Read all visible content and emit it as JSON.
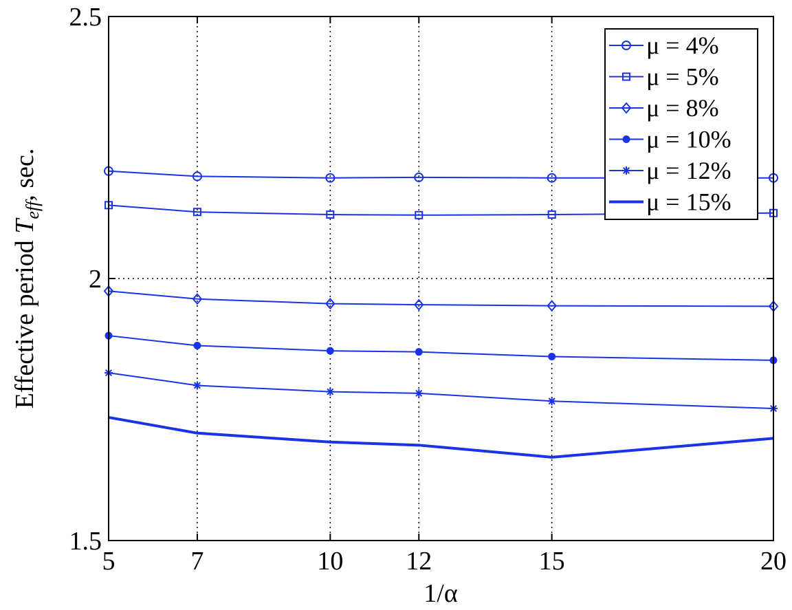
{
  "chart_data": {
    "type": "line",
    "title": "",
    "xlabel": "1/α",
    "ylabel": "Effective period T_eff, sec.",
    "ylabel_main": "Effective period ",
    "ylabel_var": "T",
    "ylabel_sub": "eff",
    "ylabel_tail": ", sec.",
    "x": [
      5,
      7,
      10,
      12,
      15,
      20
    ],
    "xlim": [
      5,
      20
    ],
    "ylim": [
      1.5,
      2.5
    ],
    "xticks": [
      "5",
      "7",
      "10",
      "12",
      "15",
      "20"
    ],
    "yticks": [
      "1.5",
      "2",
      "2.5"
    ],
    "grid": "dotted",
    "legend_position": "top-right",
    "color": "#1a33e6",
    "series": [
      {
        "name": "μ = 4%",
        "marker": "circle",
        "values": [
          2.205,
          2.195,
          2.192,
          2.193,
          2.192,
          2.192
        ]
      },
      {
        "name": "μ = 5%",
        "marker": "square",
        "values": [
          2.14,
          2.127,
          2.122,
          2.121,
          2.122,
          2.125
        ]
      },
      {
        "name": "μ = 8%",
        "marker": "diamond",
        "values": [
          1.976,
          1.961,
          1.952,
          1.95,
          1.948,
          1.947
        ]
      },
      {
        "name": "μ = 10%",
        "marker": "dot",
        "values": [
          1.891,
          1.872,
          1.862,
          1.86,
          1.851,
          1.844
        ]
      },
      {
        "name": "μ = 12%",
        "marker": "star",
        "values": [
          1.82,
          1.796,
          1.784,
          1.781,
          1.766,
          1.752
        ]
      },
      {
        "name": "μ = 15%",
        "marker": "none",
        "values": [
          1.735,
          1.705,
          1.688,
          1.682,
          1.659,
          1.695
        ]
      }
    ]
  }
}
